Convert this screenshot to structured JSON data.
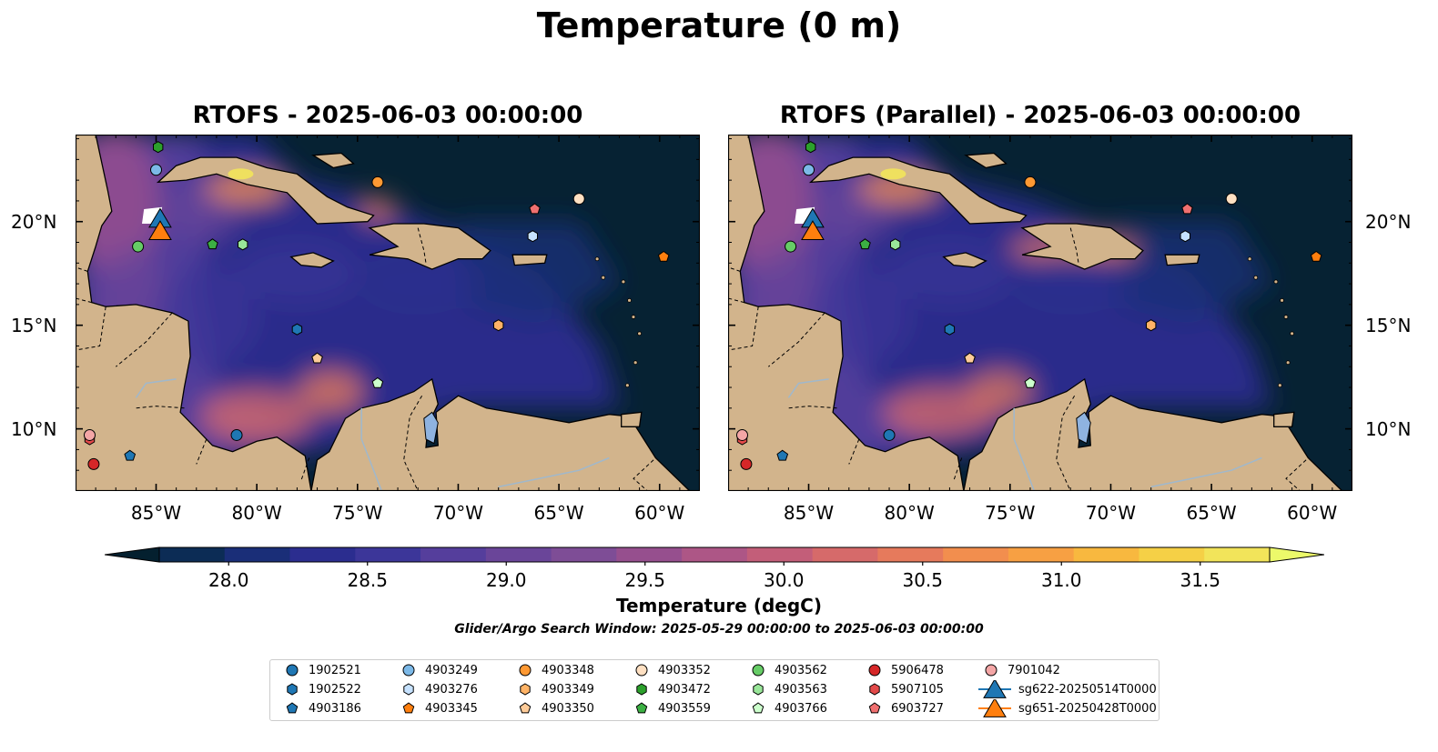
{
  "title": "Temperature (0 m)",
  "panels": [
    {
      "title": "RTOFS - 2025-06-03 00:00:00",
      "variant": "rtofs"
    },
    {
      "title": "RTOFS (Parallel) - 2025-06-03 00:00:00",
      "variant": "parallel"
    }
  ],
  "map_extent": {
    "lon_min": -89,
    "lon_max": -58,
    "lat_min": 7,
    "lat_max": 24.2
  },
  "x_ticks": [
    "85°W",
    "80°W",
    "75°W",
    "70°W",
    "65°W",
    "60°W"
  ],
  "y_ticks": [
    "20°N",
    "15°N",
    "10°N"
  ],
  "colorbar": {
    "label": "Temperature (degC)",
    "min": 27.75,
    "max": 31.75,
    "ticks": [
      "28.0",
      "28.5",
      "29.0",
      "29.5",
      "30.0",
      "30.5",
      "31.0",
      "31.5"
    ],
    "colors": [
      "#04202f",
      "#0c2c55",
      "#1a2e78",
      "#2b2d8f",
      "#3c3699",
      "#553e9c",
      "#6a4599",
      "#7e4d96",
      "#964f8e",
      "#ad5686",
      "#c35e79",
      "#d66a6a",
      "#e67a5c",
      "#f28e4e",
      "#f7a043",
      "#f8b83f",
      "#f5d046",
      "#f2e45a",
      "#ecf96a"
    ]
  },
  "colors": {
    "land": "#d2b48c",
    "ocean_deep": "#062233",
    "river": "#a0b8cc",
    "lake": "#8fb3e0"
  },
  "search_window": "Glider/Argo Search Window: 2025-05-29 00:00:00 to 2025-06-03 00:00:00",
  "floats": [
    {
      "id": "1902521",
      "marker": "circle",
      "color": "#1f77b4",
      "lon": -81.0,
      "lat": 9.7
    },
    {
      "id": "1902522",
      "marker": "hexagon",
      "color": "#1f77b4",
      "lon": -78.0,
      "lat": 14.8
    },
    {
      "id": "4903186",
      "marker": "pentagon",
      "color": "#1f77b4",
      "lon": -86.3,
      "lat": 8.7
    },
    {
      "id": "4903249",
      "marker": "circle",
      "color": "#7cb9e8",
      "lon": -85.0,
      "lat": 22.5
    },
    {
      "id": "4903276",
      "marker": "hexagon",
      "color": "#c6e2ff",
      "lon": -66.3,
      "lat": 19.3
    },
    {
      "id": "4903345",
      "marker": "pentagon",
      "color": "#ff7f0e",
      "lon": -59.8,
      "lat": 18.3
    },
    {
      "id": "4903348",
      "marker": "circle",
      "color": "#ff9933",
      "lon": -74.0,
      "lat": 21.9
    },
    {
      "id": "4903349",
      "marker": "hexagon",
      "color": "#ffb366",
      "lon": -68.0,
      "lat": 15.0
    },
    {
      "id": "4903350",
      "marker": "pentagon",
      "color": "#ffcc99",
      "lon": -77.0,
      "lat": 13.4
    },
    {
      "id": "4903352",
      "marker": "circle",
      "color": "#ffe0c2",
      "lon": -64.0,
      "lat": 21.1
    },
    {
      "id": "4903472",
      "marker": "hexagon",
      "color": "#2ca02c",
      "lon": -84.9,
      "lat": 23.6
    },
    {
      "id": "4903559",
      "marker": "pentagon",
      "color": "#3cb043",
      "lon": -82.2,
      "lat": 18.9
    },
    {
      "id": "4903562",
      "marker": "circle",
      "color": "#66cc66",
      "lon": -85.9,
      "lat": 18.8
    },
    {
      "id": "4903563",
      "marker": "hexagon",
      "color": "#99e699",
      "lon": -80.7,
      "lat": 18.9
    },
    {
      "id": "4903766",
      "marker": "pentagon",
      "color": "#ccffcc",
      "lon": -74.0,
      "lat": 12.2
    },
    {
      "id": "5906478",
      "marker": "circle",
      "color": "#d62728",
      "lon": -88.1,
      "lat": 8.3
    },
    {
      "id": "5907105",
      "marker": "hexagon",
      "color": "#e34a4a",
      "lon": -88.3,
      "lat": 9.5
    },
    {
      "id": "6903727",
      "marker": "pentagon",
      "color": "#f07070",
      "lon": -66.2,
      "lat": 20.6
    },
    {
      "id": "7901042",
      "marker": "circle",
      "color": "#f4a6a6",
      "lon": -88.3,
      "lat": 9.7
    }
  ],
  "gliders": [
    {
      "id": "sg622-20250514T0000",
      "marker": "triangle",
      "color": "#1f77b4",
      "lon": -84.8,
      "lat": 20.1
    },
    {
      "id": "sg651-20250428T0000",
      "marker": "triangle",
      "color": "#ff7f0e",
      "lon": -84.8,
      "lat": 19.5
    }
  ]
}
